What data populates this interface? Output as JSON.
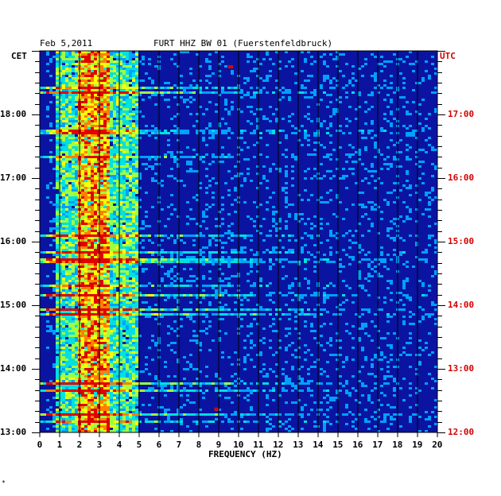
{
  "header": {
    "date": "Feb 5,2011",
    "station": "FURT HHZ BW 01 (Fuerstenfeldbruck)"
  },
  "axes": {
    "left_tz": "CET",
    "right_tz": "UTC",
    "xlabel": "FREQUENCY (HZ)"
  },
  "footer_mark": "*",
  "colors": {
    "background": "#0a14a0",
    "grid": "#000000",
    "left_text": "#000000",
    "right_text": "#d40000",
    "colormap": [
      "#0010a8",
      "#0050e0",
      "#00a0ff",
      "#00e0e0",
      "#a0ff40",
      "#ffff00",
      "#ff8000",
      "#e00000"
    ]
  },
  "chart_data": {
    "type": "heatmap",
    "title": "FURT HHZ BW 01 (Fuerstenfeldbruck)",
    "subtitle": "Feb 5,2011",
    "xlabel": "FREQUENCY (HZ)",
    "x_ticks": [
      "0",
      "1",
      "2",
      "3",
      "4",
      "5",
      "6",
      "7",
      "8",
      "9",
      "10",
      "11",
      "12",
      "13",
      "14",
      "15",
      "16",
      "17",
      "18",
      "19",
      "20"
    ],
    "xlim": [
      0,
      20
    ],
    "y_ticks_left": [
      "13:00",
      "14:00",
      "15:00",
      "16:00",
      "17:00",
      "18:00"
    ],
    "y_ticks_right": [
      "12:00",
      "13:00",
      "14:00",
      "15:00",
      "16:00",
      "17:00"
    ],
    "y_left_label": "CET",
    "y_right_label": "UTC",
    "time_range_cet": [
      "13:00",
      "19:00"
    ],
    "grid": true,
    "dominant_band_hz": [
      2,
      3.5
    ],
    "hotspots": [
      {
        "hz": 2.9,
        "time_cet": "18:15",
        "level": "high"
      },
      {
        "hz": 9.6,
        "time_cet": "18:45",
        "level": "high"
      },
      {
        "hz": 8.9,
        "time_cet": "13:22",
        "level": "high"
      },
      {
        "hz": 2.8,
        "time_cet": "16:20",
        "level": "high"
      },
      {
        "hz": 2.6,
        "time_cet": "15:20",
        "level": "high"
      }
    ]
  }
}
